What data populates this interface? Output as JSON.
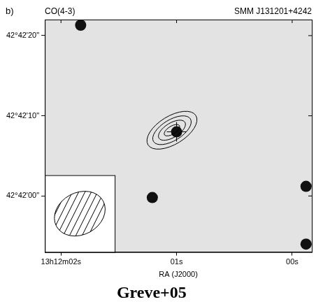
{
  "chart_data": {
    "type": "scatter",
    "title": "CO(4-3)",
    "subtitle": "SMM J131201+4242",
    "panel": "b)",
    "x_label": "RA (J2000)",
    "annotation": "Greve+05",
    "xlim": [
      2.14,
      -0.17
    ],
    "xticks": [
      {
        "value": 2,
        "label": "13h12m02s"
      },
      {
        "value": 1,
        "label": "01s"
      },
      {
        "value": 0,
        "label": "00s"
      }
    ],
    "ylim": [
      -7,
      22
    ],
    "yticks": [
      {
        "value": 0,
        "label": "42°42'00\""
      },
      {
        "value": 10,
        "label": "42°42'10\""
      },
      {
        "value": 20,
        "label": "42°42'20\""
      }
    ],
    "grid": false,
    "series": [
      {
        "color": "#111111",
        "marker": "circle",
        "values": [
          {
            "x": 1.83,
            "y": 21.3
          },
          {
            "x": 1.21,
            "y": -0.2
          },
          {
            "x": -0.12,
            "y": 1.2
          },
          {
            "x": -0.12,
            "y": -6
          },
          {
            "x": 1.0,
            "y": 8.0
          }
        ]
      },
      {
        "color": "#000000",
        "marker": "cross",
        "values": [
          {
            "x": 1.0,
            "y": 8.0
          }
        ]
      }
    ],
    "contours": {
      "center": {
        "x": 1.04,
        "y": 8.2
      },
      "levels": [
        {
          "a": 3.5,
          "b": 1.75
        },
        {
          "a": 2.7,
          "b": 1.3
        },
        {
          "a": 1.9,
          "b": 0.9
        },
        {
          "a": 1.1,
          "b": 0.5
        }
      ]
    }
  }
}
